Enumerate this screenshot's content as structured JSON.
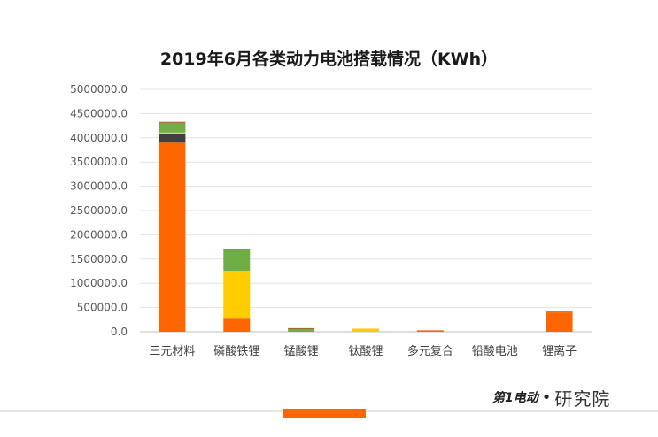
{
  "chart_data": {
    "type": "bar",
    "stacked": true,
    "title": "2019年6月各类动力电池搭载情况（KWh）",
    "categories": [
      "三元材料",
      "磷酸铁锂",
      "锰酸锂",
      "钛酸锂",
      "多元复合",
      "铅酸电池",
      "锂离子"
    ],
    "series": [
      {
        "color": "#ff6600",
        "values": [
          3900000,
          270000,
          0,
          0,
          30000,
          0,
          400000
        ]
      },
      {
        "color": "#ffcc00",
        "values": [
          0,
          990000,
          0,
          65000,
          0,
          0,
          0
        ]
      },
      {
        "color": "#404040",
        "values": [
          170000,
          0,
          0,
          0,
          0,
          0,
          0
        ]
      },
      {
        "color": "#ccd94d",
        "values": [
          40000,
          0,
          0,
          0,
          0,
          0,
          0
        ]
      },
      {
        "color": "#70ad47",
        "values": [
          200000,
          440000,
          70000,
          0,
          0,
          0,
          20000
        ]
      },
      {
        "color": "#a5561f",
        "values": [
          20000,
          10000,
          5000,
          0,
          0,
          0,
          0
        ]
      }
    ],
    "yticks": [
      "0.0",
      "500000.0",
      "1000000.0",
      "1500000.0",
      "2000000.0",
      "2500000.0",
      "3000000.0",
      "3500000.0",
      "4000000.0",
      "4500000.0",
      "5000000.0"
    ],
    "ylim": [
      0,
      5000000
    ],
    "grid": true,
    "legend": "none"
  },
  "footer": {
    "logo_mark": "第1电动",
    "logo_dot": "•",
    "logo_text": "研究院"
  }
}
